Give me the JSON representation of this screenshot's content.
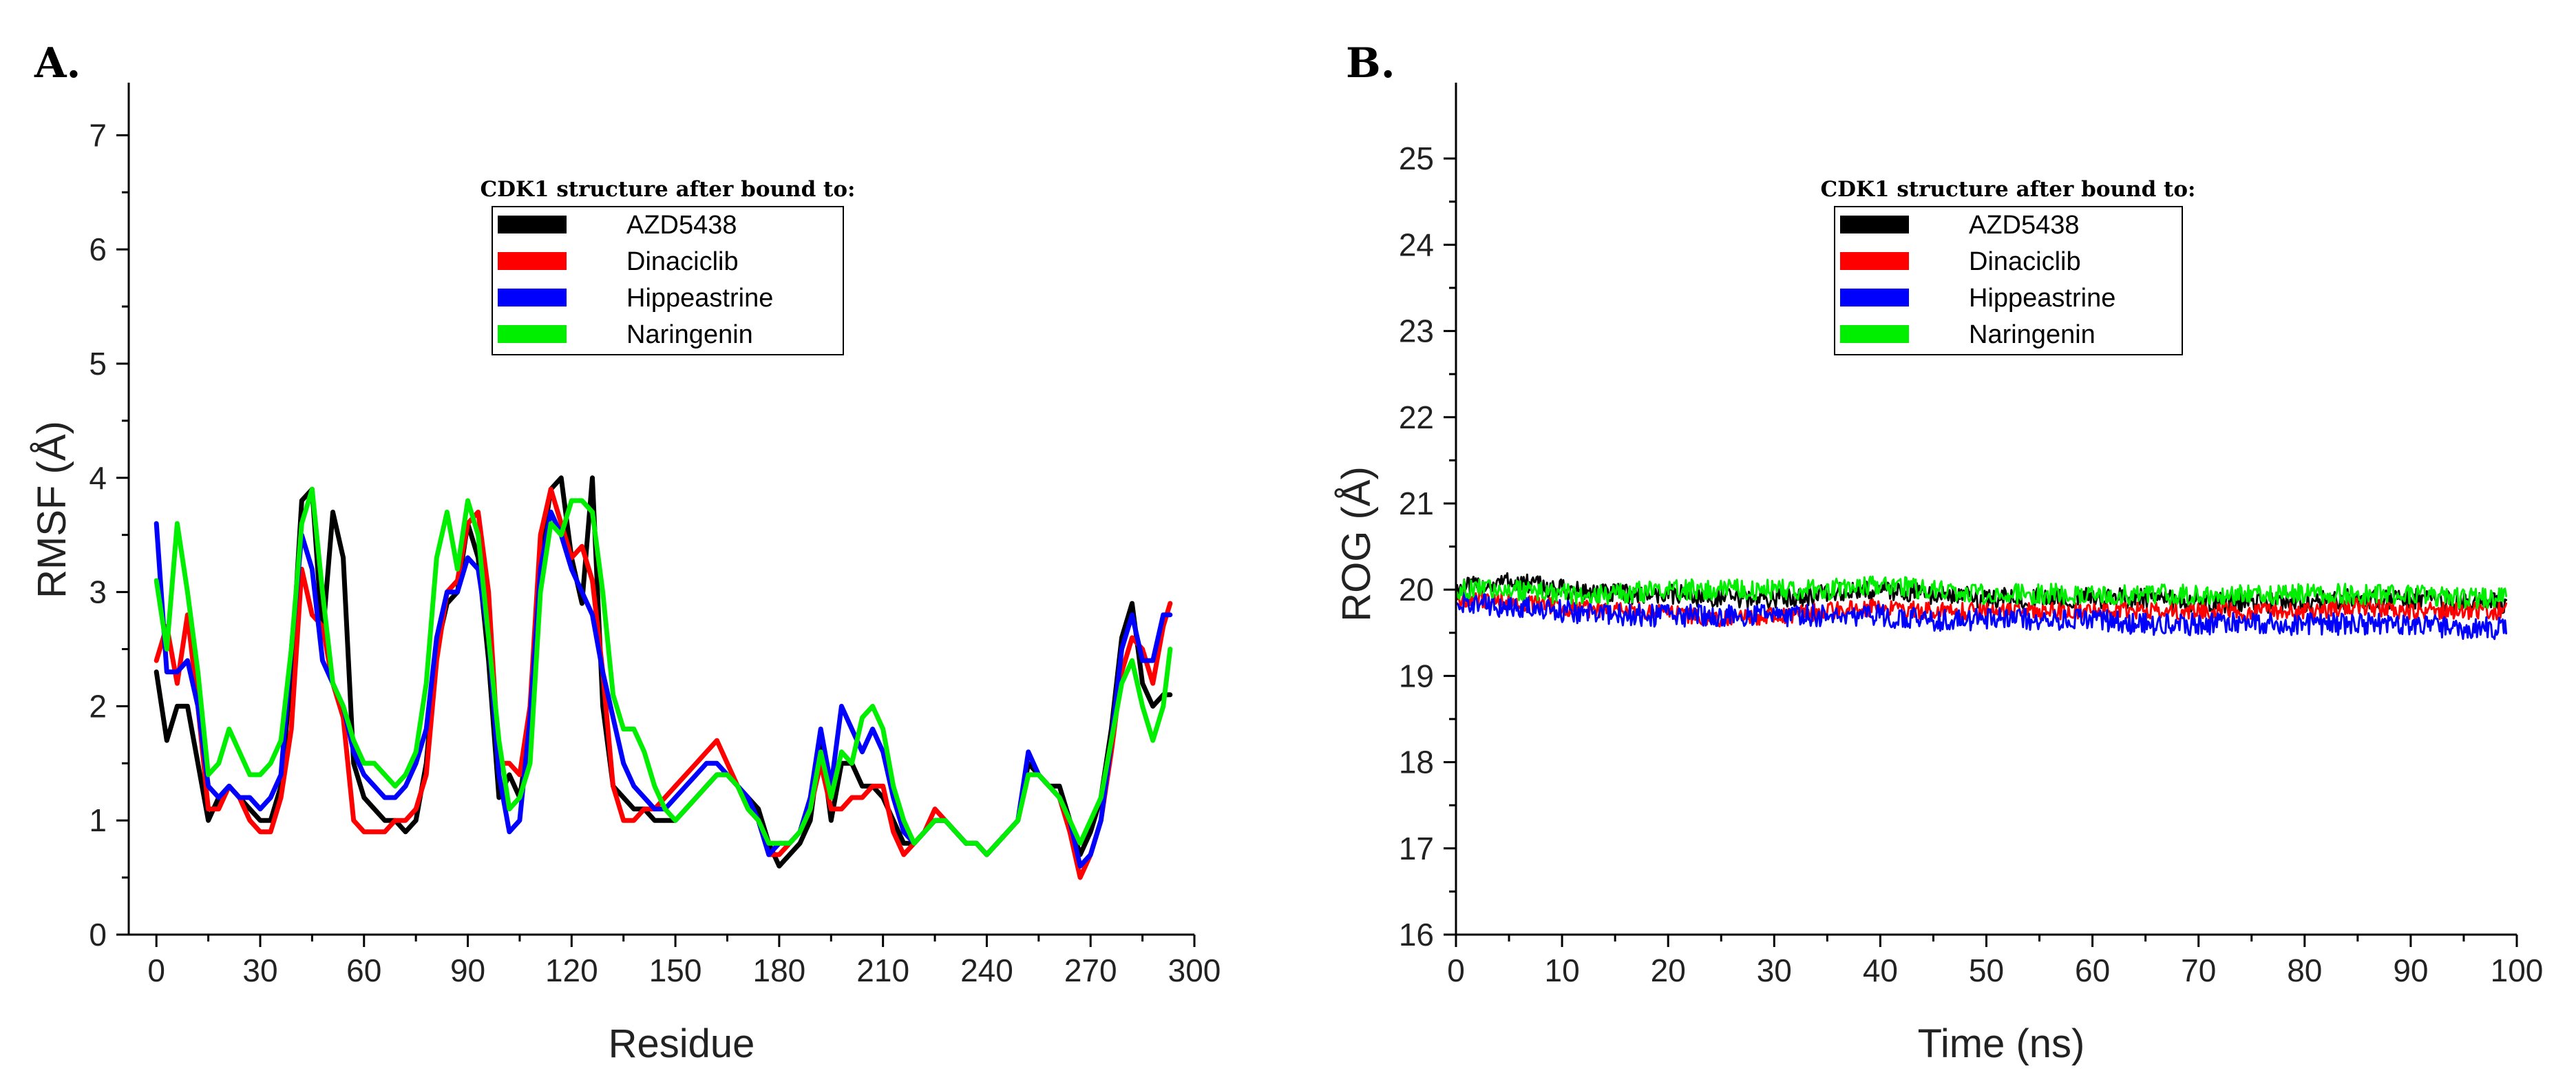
{
  "chart_data": [
    {
      "type": "line",
      "panel_label": "A.",
      "title": "",
      "xlabel": "Residue",
      "ylabel": "RMSF (Å)",
      "xlim": [
        -8,
        300
      ],
      "ylim": [
        0,
        7.4
      ],
      "xticks": [
        0,
        30,
        60,
        90,
        120,
        150,
        180,
        210,
        240,
        270,
        300
      ],
      "yticks": [
        0,
        1,
        2,
        3,
        4,
        5,
        6,
        7
      ],
      "legend": {
        "title": "CDK1 structure after bound to:",
        "location": "top-center",
        "entries": [
          "AZD5438",
          "Dinaciclib",
          "Hippeastrine",
          "Naringenin"
        ]
      },
      "series": [
        {
          "name": "AZD5438",
          "color": "#000000",
          "x": [
            0,
            3,
            6,
            9,
            12,
            15,
            18,
            21,
            24,
            27,
            30,
            33,
            36,
            39,
            42,
            45,
            48,
            51,
            54,
            57,
            60,
            63,
            66,
            69,
            72,
            75,
            78,
            81,
            84,
            87,
            90,
            93,
            96,
            99,
            102,
            105,
            108,
            111,
            114,
            117,
            120,
            123,
            126,
            129,
            132,
            135,
            138,
            141,
            144,
            147,
            150,
            153,
            156,
            159,
            162,
            165,
            168,
            171,
            174,
            177,
            180,
            183,
            186,
            189,
            192,
            195,
            198,
            201,
            204,
            207,
            210,
            213,
            216,
            219,
            222,
            225,
            228,
            231,
            234,
            237,
            240,
            243,
            246,
            249,
            252,
            255,
            258,
            261,
            264,
            267,
            270,
            273,
            276,
            279,
            282,
            285,
            288,
            291,
            293
          ],
          "y": [
            2.3,
            1.7,
            2.0,
            2.0,
            1.5,
            1.0,
            1.2,
            1.3,
            1.2,
            1.1,
            1.0,
            1.0,
            1.3,
            2.3,
            3.8,
            3.9,
            2.6,
            3.7,
            3.3,
            1.5,
            1.2,
            1.1,
            1.0,
            1.0,
            0.9,
            1.0,
            1.5,
            2.5,
            2.9,
            3.0,
            3.6,
            3.3,
            2.4,
            1.2,
            1.4,
            1.2,
            1.8,
            3.3,
            3.9,
            4.0,
            3.3,
            2.9,
            4.0,
            2.0,
            1.3,
            1.2,
            1.1,
            1.1,
            1.0,
            1.0,
            1.0,
            1.1,
            1.2,
            1.3,
            1.4,
            1.4,
            1.3,
            1.2,
            1.1,
            0.8,
            0.6,
            0.7,
            0.8,
            1.0,
            1.7,
            1.0,
            1.5,
            1.5,
            1.3,
            1.3,
            1.2,
            1.0,
            0.8,
            0.8,
            0.9,
            1.0,
            1.0,
            0.9,
            0.8,
            0.8,
            0.7,
            0.8,
            0.9,
            1.0,
            1.5,
            1.4,
            1.3,
            1.3,
            1.0,
            0.7,
            0.9,
            1.2,
            1.8,
            2.6,
            2.9,
            2.2,
            2.0,
            2.1,
            2.1
          ]
        },
        {
          "name": "Dinaciclib",
          "color": "#ff0000",
          "x": [
            0,
            3,
            6,
            9,
            12,
            15,
            18,
            21,
            24,
            27,
            30,
            33,
            36,
            39,
            42,
            45,
            48,
            51,
            54,
            57,
            60,
            63,
            66,
            69,
            72,
            75,
            78,
            81,
            84,
            87,
            90,
            93,
            96,
            99,
            102,
            105,
            108,
            111,
            114,
            117,
            120,
            123,
            126,
            129,
            132,
            135,
            138,
            141,
            144,
            147,
            150,
            153,
            156,
            159,
            162,
            165,
            168,
            171,
            174,
            177,
            180,
            183,
            186,
            189,
            192,
            195,
            198,
            201,
            204,
            207,
            210,
            213,
            216,
            219,
            222,
            225,
            228,
            231,
            234,
            237,
            240,
            243,
            246,
            249,
            252,
            255,
            258,
            261,
            264,
            267,
            270,
            273,
            276,
            279,
            282,
            285,
            288,
            291,
            293
          ],
          "y": [
            2.4,
            2.7,
            2.2,
            2.8,
            2.0,
            1.1,
            1.1,
            1.3,
            1.2,
            1.0,
            0.9,
            0.9,
            1.2,
            1.8,
            3.2,
            2.8,
            2.7,
            2.2,
            1.9,
            1.0,
            0.9,
            0.9,
            0.9,
            1.0,
            1.0,
            1.1,
            1.4,
            2.4,
            3.0,
            3.1,
            3.6,
            3.7,
            3.0,
            1.5,
            1.5,
            1.4,
            2.0,
            3.5,
            3.9,
            3.6,
            3.3,
            3.4,
            3.1,
            2.3,
            1.3,
            1.0,
            1.0,
            1.1,
            1.1,
            1.2,
            1.3,
            1.4,
            1.5,
            1.6,
            1.7,
            1.5,
            1.3,
            1.1,
            1.0,
            0.7,
            0.7,
            0.8,
            0.9,
            1.1,
            1.5,
            1.1,
            1.1,
            1.2,
            1.2,
            1.3,
            1.3,
            0.9,
            0.7,
            0.8,
            0.9,
            1.1,
            1.0,
            0.9,
            0.8,
            0.8,
            0.7,
            0.8,
            0.9,
            1.0,
            1.4,
            1.4,
            1.3,
            1.2,
            0.9,
            0.5,
            0.7,
            1.0,
            1.6,
            2.3,
            2.6,
            2.5,
            2.2,
            2.7,
            2.9
          ]
        },
        {
          "name": "Hippeastrine",
          "color": "#0000ff",
          "x": [
            0,
            3,
            6,
            9,
            12,
            15,
            18,
            21,
            24,
            27,
            30,
            33,
            36,
            39,
            42,
            45,
            48,
            51,
            54,
            57,
            60,
            63,
            66,
            69,
            72,
            75,
            78,
            81,
            84,
            87,
            90,
            93,
            96,
            99,
            102,
            105,
            108,
            111,
            114,
            117,
            120,
            123,
            126,
            129,
            132,
            135,
            138,
            141,
            144,
            147,
            150,
            153,
            156,
            159,
            162,
            165,
            168,
            171,
            174,
            177,
            180,
            183,
            186,
            189,
            192,
            195,
            198,
            201,
            204,
            207,
            210,
            213,
            216,
            219,
            222,
            225,
            228,
            231,
            234,
            237,
            240,
            243,
            246,
            249,
            252,
            255,
            258,
            261,
            264,
            267,
            270,
            273,
            276,
            279,
            282,
            285,
            288,
            291,
            293
          ],
          "y": [
            3.6,
            2.3,
            2.3,
            2.4,
            2.0,
            1.3,
            1.2,
            1.3,
            1.2,
            1.2,
            1.1,
            1.2,
            1.4,
            2.5,
            3.5,
            3.2,
            2.4,
            2.2,
            2.0,
            1.6,
            1.4,
            1.3,
            1.2,
            1.2,
            1.3,
            1.5,
            1.8,
            2.6,
            3.0,
            3.0,
            3.3,
            3.2,
            2.6,
            1.4,
            0.9,
            1.0,
            1.9,
            3.2,
            3.7,
            3.5,
            3.2,
            3.0,
            2.8,
            2.3,
            1.9,
            1.5,
            1.3,
            1.2,
            1.1,
            1.1,
            1.2,
            1.3,
            1.4,
            1.5,
            1.5,
            1.4,
            1.3,
            1.2,
            1.0,
            0.7,
            0.8,
            0.8,
            0.9,
            1.2,
            1.8,
            1.3,
            2.0,
            1.8,
            1.6,
            1.8,
            1.6,
            1.2,
            0.9,
            0.8,
            0.9,
            1.0,
            1.0,
            0.9,
            0.8,
            0.8,
            0.7,
            0.8,
            0.9,
            1.0,
            1.6,
            1.4,
            1.3,
            1.2,
            1.0,
            0.6,
            0.7,
            1.0,
            1.7,
            2.5,
            2.8,
            2.4,
            2.4,
            2.8,
            2.8
          ]
        },
        {
          "name": "Naringenin",
          "color": "#00ee00",
          "x": [
            0,
            3,
            6,
            9,
            12,
            15,
            18,
            21,
            24,
            27,
            30,
            33,
            36,
            39,
            42,
            45,
            48,
            51,
            54,
            57,
            60,
            63,
            66,
            69,
            72,
            75,
            78,
            81,
            84,
            87,
            90,
            93,
            96,
            99,
            102,
            105,
            108,
            111,
            114,
            117,
            120,
            123,
            126,
            129,
            132,
            135,
            138,
            141,
            144,
            147,
            150,
            153,
            156,
            159,
            162,
            165,
            168,
            171,
            174,
            177,
            180,
            183,
            186,
            189,
            192,
            195,
            198,
            201,
            204,
            207,
            210,
            213,
            216,
            219,
            222,
            225,
            228,
            231,
            234,
            237,
            240,
            243,
            246,
            249,
            252,
            255,
            258,
            261,
            264,
            267,
            270,
            273,
            276,
            279,
            282,
            285,
            288,
            291,
            293
          ],
          "y": [
            3.1,
            2.5,
            3.6,
            3.0,
            2.3,
            1.4,
            1.5,
            1.8,
            1.6,
            1.4,
            1.4,
            1.5,
            1.7,
            2.5,
            3.6,
            3.9,
            3.0,
            2.2,
            2.0,
            1.7,
            1.5,
            1.5,
            1.4,
            1.3,
            1.4,
            1.6,
            2.2,
            3.3,
            3.7,
            3.2,
            3.8,
            3.5,
            2.6,
            1.7,
            1.1,
            1.2,
            1.5,
            3.0,
            3.6,
            3.5,
            3.8,
            3.8,
            3.7,
            3.0,
            2.1,
            1.8,
            1.8,
            1.6,
            1.3,
            1.1,
            1.0,
            1.1,
            1.2,
            1.3,
            1.4,
            1.4,
            1.3,
            1.1,
            1.0,
            0.8,
            0.8,
            0.8,
            0.9,
            1.1,
            1.6,
            1.2,
            1.6,
            1.5,
            1.9,
            2.0,
            1.8,
            1.3,
            1.0,
            0.8,
            0.9,
            1.0,
            1.0,
            0.9,
            0.8,
            0.8,
            0.7,
            0.8,
            0.9,
            1.0,
            1.4,
            1.4,
            1.3,
            1.2,
            1.0,
            0.8,
            1.0,
            1.2,
            1.7,
            2.2,
            2.4,
            2.0,
            1.7,
            2.0,
            2.5
          ]
        }
      ]
    },
    {
      "type": "line",
      "panel_label": "B.",
      "title": "",
      "xlabel": "Time (ns)",
      "ylabel": "ROG (Å)",
      "xlim": [
        0,
        100
      ],
      "ylim": [
        16,
        25.8
      ],
      "xticks": [
        0,
        10,
        20,
        30,
        40,
        50,
        60,
        70,
        80,
        90,
        100
      ],
      "yticks": [
        16,
        17,
        18,
        19,
        20,
        21,
        22,
        23,
        24,
        25
      ],
      "legend": {
        "title": "CDK1 structure after bound to:",
        "location": "top-center",
        "entries": [
          "AZD5438",
          "Dinaciclib",
          "Hippeastrine",
          "Naringenin"
        ]
      },
      "series": [
        {
          "name": "AZD5438",
          "color": "#000000",
          "x": [
            0,
            5,
            10,
            15,
            20,
            25,
            30,
            35,
            40,
            45,
            50,
            55,
            60,
            65,
            70,
            75,
            80,
            85,
            90,
            95,
            99
          ],
          "y": [
            20.0,
            20.1,
            20.0,
            19.95,
            19.95,
            19.9,
            19.9,
            19.95,
            20.0,
            19.95,
            19.9,
            19.9,
            19.9,
            19.9,
            19.85,
            19.85,
            19.85,
            19.9,
            19.9,
            19.85,
            19.85
          ],
          "noise_amplitude": 0.12
        },
        {
          "name": "Dinaciclib",
          "color": "#ff0000",
          "x": [
            0,
            5,
            10,
            15,
            20,
            25,
            30,
            35,
            40,
            45,
            50,
            55,
            60,
            65,
            70,
            75,
            80,
            85,
            90,
            95,
            99
          ],
          "y": [
            19.9,
            19.85,
            19.8,
            19.75,
            19.75,
            19.65,
            19.7,
            19.75,
            19.8,
            19.75,
            19.75,
            19.75,
            19.75,
            19.75,
            19.75,
            19.75,
            19.75,
            19.8,
            19.75,
            19.75,
            19.75
          ],
          "noise_amplitude": 0.1
        },
        {
          "name": "Hippeastrine",
          "color": "#0000ff",
          "x": [
            0,
            5,
            10,
            15,
            20,
            25,
            30,
            35,
            40,
            45,
            50,
            55,
            60,
            65,
            70,
            75,
            80,
            85,
            90,
            95,
            99
          ],
          "y": [
            19.85,
            19.8,
            19.75,
            19.7,
            19.7,
            19.7,
            19.7,
            19.7,
            19.7,
            19.65,
            19.65,
            19.65,
            19.65,
            19.6,
            19.6,
            19.6,
            19.6,
            19.6,
            19.6,
            19.55,
            19.55
          ],
          "noise_amplitude": 0.13
        },
        {
          "name": "Naringenin",
          "color": "#00ee00",
          "x": [
            0,
            5,
            10,
            15,
            20,
            25,
            30,
            35,
            40,
            45,
            50,
            55,
            60,
            65,
            70,
            75,
            80,
            85,
            90,
            95,
            99
          ],
          "y": [
            20.0,
            20.0,
            19.95,
            19.95,
            20.0,
            20.0,
            20.0,
            20.0,
            20.05,
            20.0,
            19.95,
            19.95,
            19.95,
            19.95,
            19.95,
            19.95,
            19.95,
            19.95,
            19.95,
            19.9,
            19.9
          ],
          "noise_amplitude": 0.12
        }
      ]
    }
  ]
}
